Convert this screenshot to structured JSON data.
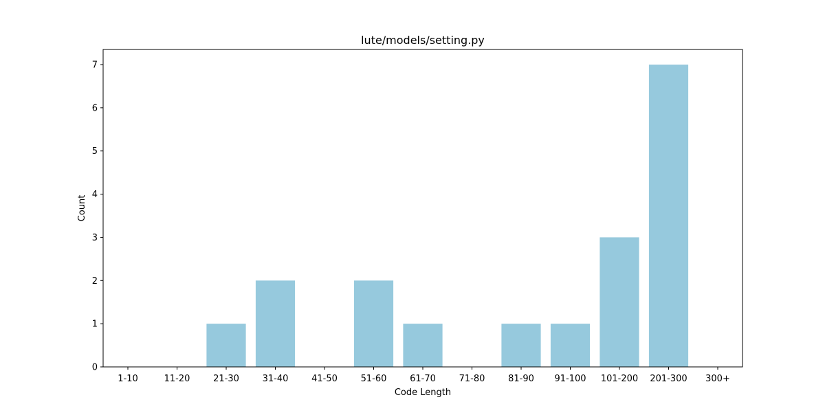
{
  "chart_data": {
    "type": "bar",
    "title": "lute/models/setting.py",
    "xlabel": "Code Length",
    "ylabel": "Count",
    "categories": [
      "1-10",
      "11-20",
      "21-30",
      "31-40",
      "41-50",
      "51-60",
      "61-70",
      "71-80",
      "81-90",
      "91-100",
      "101-200",
      "201-300",
      "300+"
    ],
    "values": [
      0,
      0,
      1,
      2,
      0,
      2,
      1,
      0,
      1,
      1,
      3,
      7,
      0
    ],
    "ylim": [
      0,
      7.35
    ],
    "yticks": [
      0,
      1,
      2,
      3,
      4,
      5,
      6,
      7
    ],
    "grid": false,
    "legend": "none",
    "colors": {
      "bar": "#96c9dd",
      "axis": "#000000",
      "background": "#ffffff"
    }
  }
}
